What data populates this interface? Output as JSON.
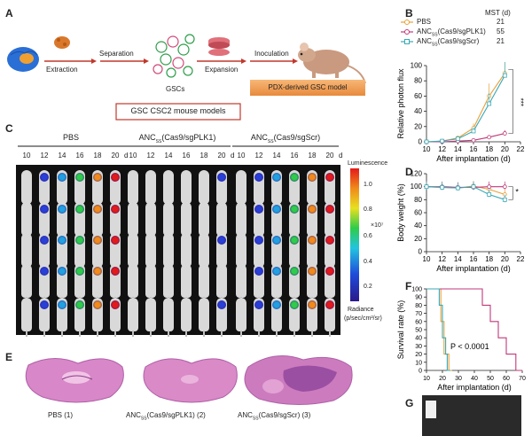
{
  "panels": {
    "A": "A",
    "B": "B",
    "C": "C",
    "D": "D",
    "E": "E",
    "F": "F",
    "G": "G"
  },
  "panelA": {
    "steps": [
      "Extraction",
      "Separation",
      "GSCs",
      "Expansion",
      "Inoculation"
    ],
    "model_box": "PDX-derived GSC model",
    "caption": "GSC CSC2 mouse models"
  },
  "panelB": {
    "mst_header": "MST (d)",
    "legend": [
      {
        "name": "PBS",
        "mst": "21",
        "color": "#e8a03a"
      },
      {
        "name": "ANC",
        "sub": "SS",
        "rest": "(Cas9/sgPLK1)",
        "mst": "55",
        "color": "#c0397a"
      },
      {
        "name": "ANC",
        "sub": "SS",
        "rest": "(Cas9/sgScr)",
        "mst": "21",
        "color": "#3aa9b6"
      }
    ],
    "sig": "***",
    "chart_data": {
      "type": "line",
      "ylabel": "Relative photon flux",
      "xlabel": "After implantation (d)",
      "x": [
        10,
        12,
        14,
        16,
        18,
        20
      ],
      "xticks": [
        10,
        12,
        14,
        16,
        18,
        20,
        22
      ],
      "ylim": [
        0,
        100
      ],
      "yticks": [
        0,
        20,
        40,
        60,
        80,
        100
      ],
      "series": [
        {
          "name": "PBS",
          "values": [
            0,
            1,
            5,
            18,
            60,
            90
          ],
          "color": "#e8a03a"
        },
        {
          "name": "ANCss(Cas9/sgPLK1)",
          "values": [
            0,
            0,
            1,
            2,
            6,
            11
          ],
          "color": "#c0397a"
        },
        {
          "name": "ANCss(Cas9/sgScr)",
          "values": [
            0,
            1,
            4,
            14,
            50,
            87
          ],
          "color": "#3aa9b6"
        }
      ]
    }
  },
  "panelC": {
    "groups": [
      {
        "name": "PBS"
      },
      {
        "name": "ANC",
        "sub": "SS",
        "rest": "(Cas9/sgPLK1)"
      },
      {
        "name": "ANC",
        "sub": "SS",
        "rest": "(Cas9/sgScr)"
      }
    ],
    "days": [
      "10",
      "12",
      "14",
      "16",
      "18",
      "20"
    ],
    "day_unit": "d",
    "lum_label": "Luminescence",
    "cb_ticks": [
      "1.0",
      "0.8",
      "0.6",
      "0.4",
      "0.2"
    ],
    "multiplier": "×10⁷",
    "radiance": "Radiance",
    "radiance_unit": "(p/sec/cm²/sr)"
  },
  "panelD": {
    "sig": "*",
    "chart_data": {
      "type": "line",
      "ylabel": "Body weight (%)",
      "xlabel": "After implantation (d)",
      "x": [
        10,
        12,
        14,
        16,
        18,
        20
      ],
      "xticks": [
        10,
        12,
        14,
        16,
        18,
        20,
        22
      ],
      "ylim": [
        0,
        120
      ],
      "yticks": [
        0,
        20,
        40,
        60,
        80,
        100,
        120
      ],
      "series": [
        {
          "name": "PBS",
          "values": [
            100,
            99,
            98,
            101,
            96,
            88
          ],
          "color": "#e8a03a"
        },
        {
          "name": "ANCss(Cas9/sgPLK1)",
          "values": [
            100,
            100,
            99,
            99,
            100,
            100
          ],
          "color": "#c0397a"
        },
        {
          "name": "ANCss(Cas9/sgScr)",
          "values": [
            100,
            99,
            98,
            100,
            88,
            80
          ],
          "color": "#3aa9b6"
        }
      ]
    }
  },
  "panelE": {
    "labels": [
      {
        "name": "PBS (1)"
      },
      {
        "name": "ANC",
        "sub": "SS",
        "rest": "(Cas9/sgPLK1) (2)"
      },
      {
        "name": "ANC",
        "sub": "SS",
        "rest": "(Cas9/sgScr) (3)"
      }
    ]
  },
  "panelF": {
    "pvalue": "P < 0.0001",
    "chart_data": {
      "type": "line",
      "ylabel": "Survival rate (%)",
      "xlabel": "After implantation (d)",
      "xlim": [
        10,
        70
      ],
      "xticks": [
        10,
        20,
        30,
        40,
        50,
        60,
        70
      ],
      "ylim": [
        0,
        100
      ],
      "yticks": [
        0,
        10,
        20,
        30,
        40,
        50,
        60,
        70,
        80,
        90,
        100
      ],
      "series": [
        {
          "name": "PBS",
          "color": "#e8a03a",
          "steps": [
            [
              10,
              100
            ],
            [
              19,
              100
            ],
            [
              19,
              60
            ],
            [
              21,
              60
            ],
            [
              21,
              20
            ],
            [
              24,
              20
            ],
            [
              24,
              0
            ],
            [
              26,
              0
            ]
          ]
        },
        {
          "name": "ANCss(Cas9/sgPLK1)",
          "color": "#c0397a",
          "steps": [
            [
              10,
              100
            ],
            [
              45,
              100
            ],
            [
              45,
              80
            ],
            [
              50,
              80
            ],
            [
              50,
              60
            ],
            [
              55,
              60
            ],
            [
              55,
              40
            ],
            [
              60,
              40
            ],
            [
              60,
              20
            ],
            [
              66,
              20
            ],
            [
              66,
              0
            ],
            [
              70,
              0
            ]
          ]
        },
        {
          "name": "ANCss(Cas9/sgScr)",
          "color": "#3aa9b6",
          "steps": [
            [
              10,
              100
            ],
            [
              18,
              100
            ],
            [
              18,
              80
            ],
            [
              20,
              80
            ],
            [
              20,
              40
            ],
            [
              22,
              40
            ],
            [
              22,
              20
            ],
            [
              23,
              20
            ],
            [
              23,
              0
            ],
            [
              25,
              0
            ]
          ]
        }
      ]
    }
  }
}
